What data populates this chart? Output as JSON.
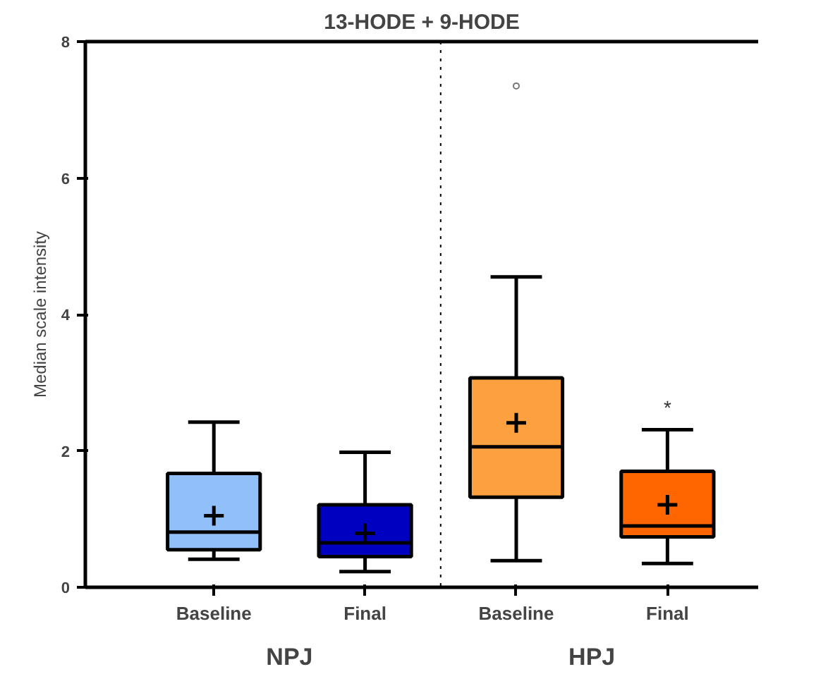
{
  "chart_data": {
    "type": "box",
    "title": "13-HODE + 9-HODE",
    "ylabel": "Median scale intensity",
    "categories": [
      "Baseline",
      "Final",
      "Baseline",
      "Final"
    ],
    "colors": [
      "#90bff9",
      "#0000c0",
      "#fca040",
      "#ff6600"
    ],
    "boxes": [
      {
        "low": 0.41,
        "q1": 0.55,
        "median": 0.81,
        "q3": 1.67,
        "high": 2.42,
        "mean": 1.05
      },
      {
        "low": 0.23,
        "q1": 0.45,
        "median": 0.65,
        "q3": 1.21,
        "high": 1.98,
        "mean": 0.79
      },
      {
        "low": 0.39,
        "q1": 1.32,
        "median": 2.06,
        "q3": 3.07,
        "high": 4.55,
        "mean": 2.41,
        "outliers": [
          7.35
        ]
      },
      {
        "low": 0.35,
        "q1": 0.74,
        "median": 0.9,
        "q3": 1.7,
        "high": 2.31,
        "mean": 1.21
      }
    ],
    "ylim": [
      0,
      8
    ],
    "yticks": [
      0,
      2,
      4,
      6,
      8
    ],
    "grid": false,
    "marker": "cross",
    "annotations": [
      "NPJ",
      "HPJ",
      "*"
    ]
  }
}
